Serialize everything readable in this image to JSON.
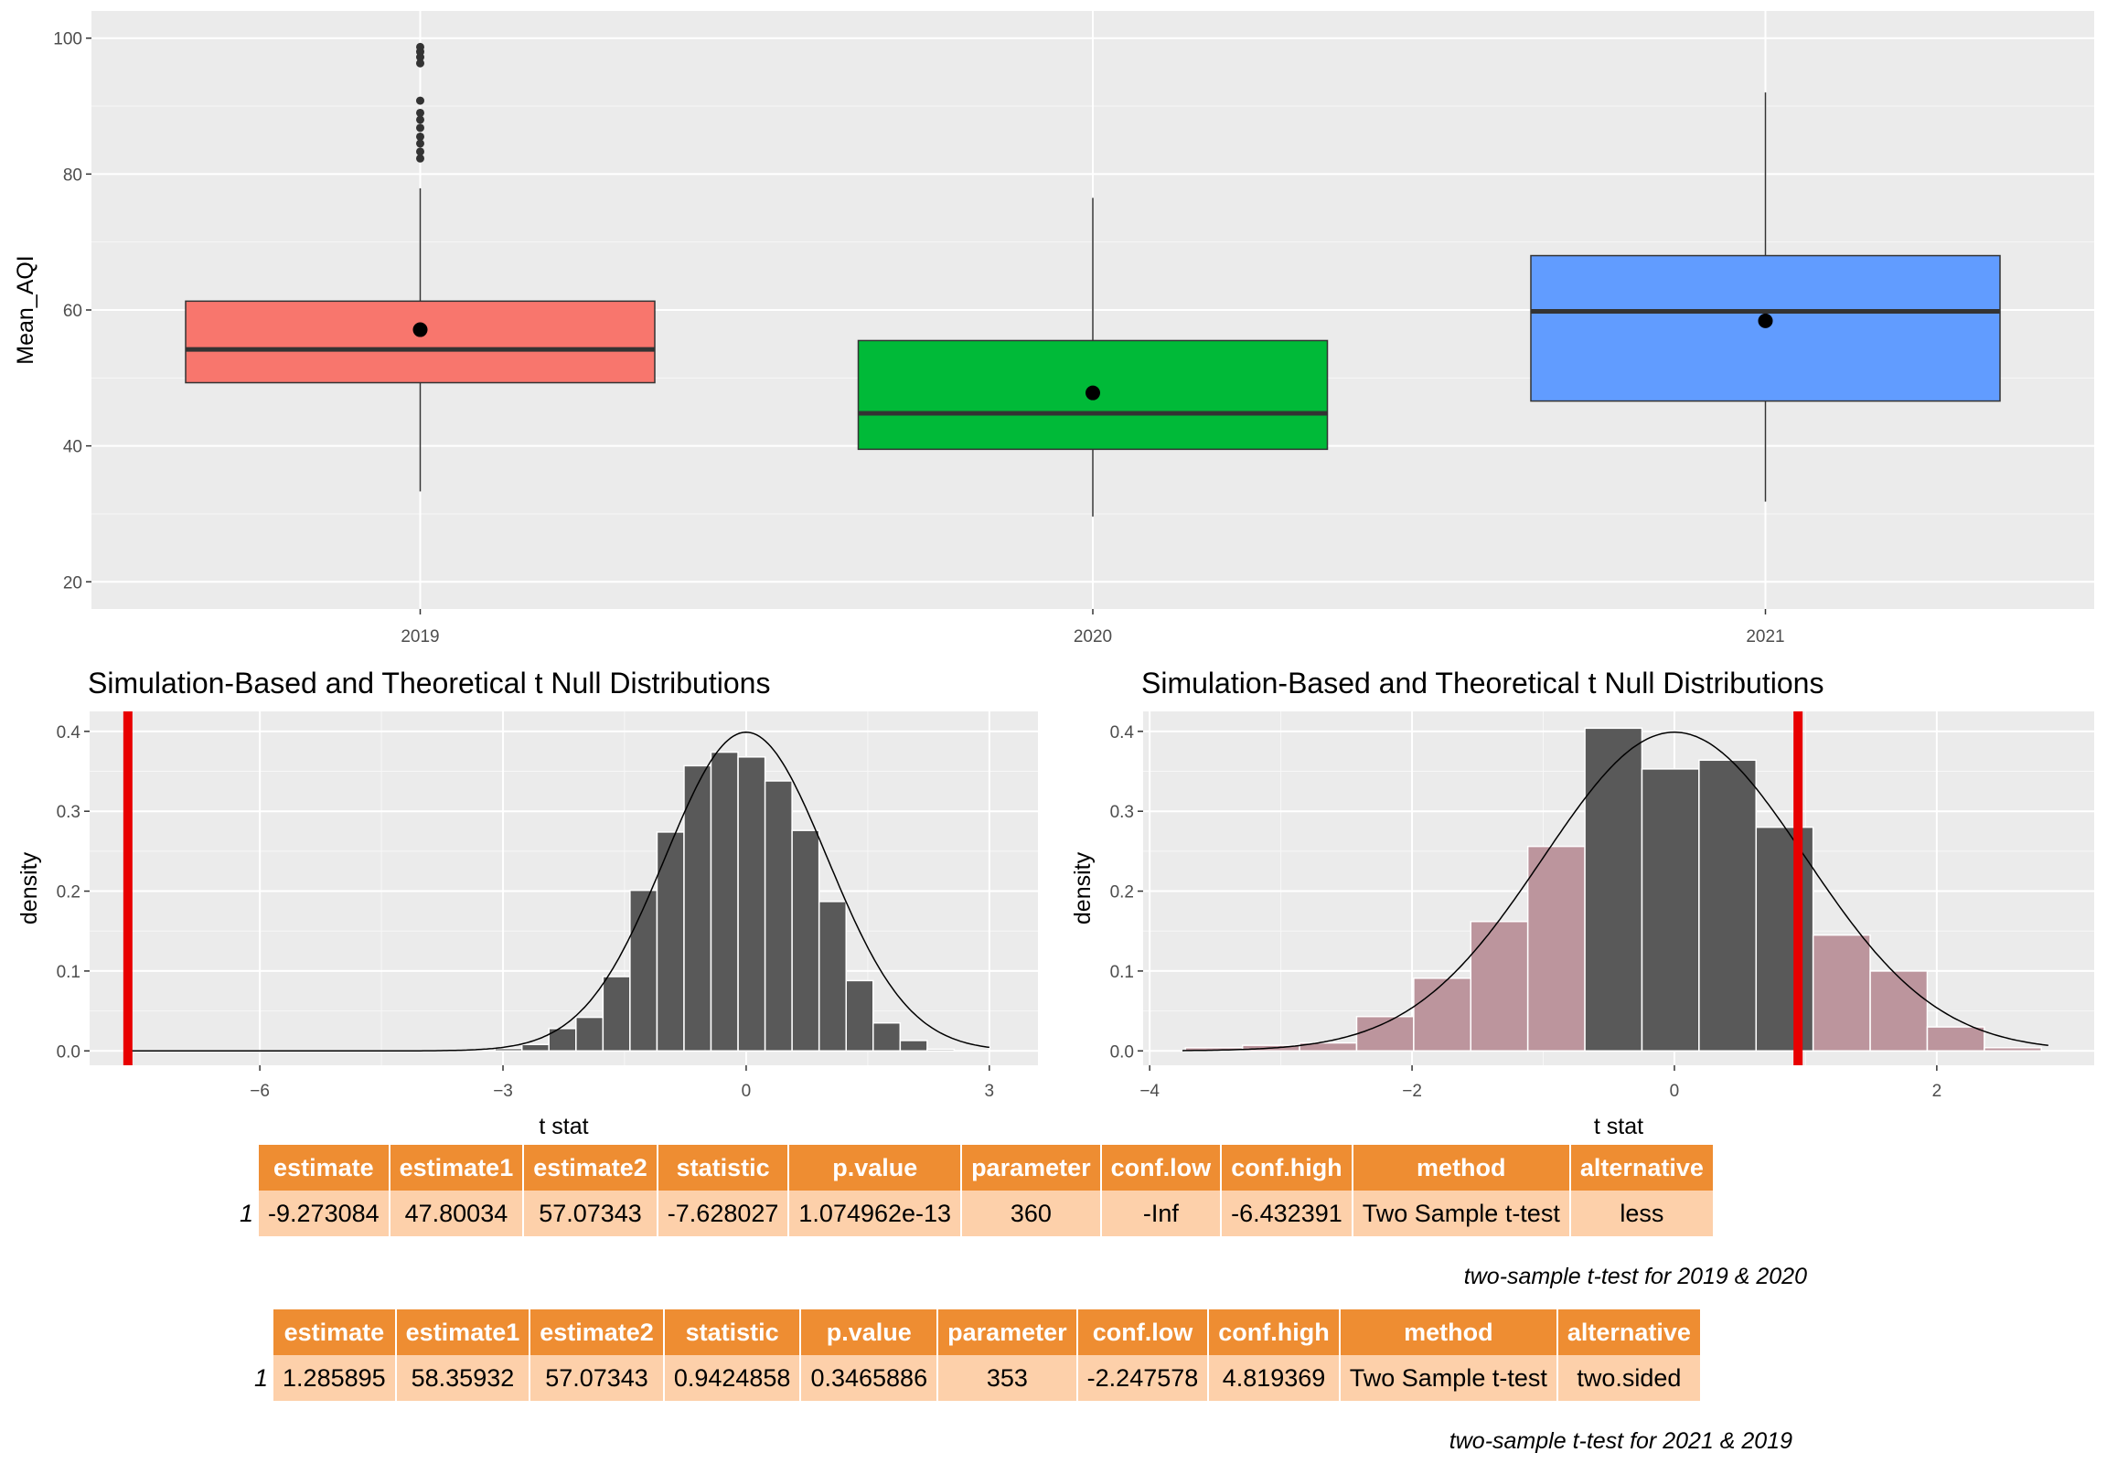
{
  "chart_data": [
    {
      "type": "box",
      "ylabel": "Mean_AQI",
      "xlabel": "",
      "ylim": [
        16,
        104
      ],
      "yticks": [
        20,
        40,
        60,
        80,
        100
      ],
      "categories": [
        "2019",
        "2020",
        "2021"
      ],
      "series": [
        {
          "name": "2019",
          "color": "#f8766d",
          "q1": 49.3,
          "median": 54.2,
          "q3": 61.3,
          "whisker_low": 33.3,
          "whisker_high": 77.9,
          "mean": 57.1,
          "outliers": [
            82.3,
            83.3,
            84.5,
            85.5,
            86.8,
            88.0,
            89.0,
            90.8,
            96.3,
            97.2,
            98.0,
            98.7
          ]
        },
        {
          "name": "2020",
          "color": "#00ba38",
          "q1": 39.5,
          "median": 44.8,
          "q3": 55.5,
          "whisker_low": 29.6,
          "whisker_high": 76.5,
          "mean": 47.8,
          "outliers": []
        },
        {
          "name": "2021",
          "color": "#619cff",
          "q1": 46.6,
          "median": 59.8,
          "q3": 68.0,
          "whisker_low": 31.8,
          "whisker_high": 92.0,
          "mean": 58.4,
          "outliers": []
        }
      ]
    },
    {
      "type": "histogram",
      "title": "Simulation-Based and Theoretical t Null Distributions",
      "xlabel": "t stat",
      "ylabel": "density",
      "xlim": [
        -8.1,
        3.6
      ],
      "ylim": [
        -0.018,
        0.425
      ],
      "xticks": [
        -6,
        -3,
        0,
        3
      ],
      "yticks": [
        0.0,
        0.1,
        0.2,
        0.3,
        0.4
      ],
      "bin_width": 0.333,
      "bins": [
        {
          "x": -2.933,
          "density": 0.003,
          "shaded": false
        },
        {
          "x": -2.6,
          "density": 0.008,
          "shaded": false
        },
        {
          "x": -2.267,
          "density": 0.028,
          "shaded": false
        },
        {
          "x": -1.933,
          "density": 0.042,
          "shaded": false
        },
        {
          "x": -1.6,
          "density": 0.093,
          "shaded": false
        },
        {
          "x": -1.267,
          "density": 0.201,
          "shaded": false
        },
        {
          "x": -0.933,
          "density": 0.274,
          "shaded": false
        },
        {
          "x": -0.6,
          "density": 0.357,
          "shaded": false
        },
        {
          "x": -0.267,
          "density": 0.374,
          "shaded": false
        },
        {
          "x": 0.067,
          "density": 0.368,
          "shaded": false
        },
        {
          "x": 0.4,
          "density": 0.338,
          "shaded": false
        },
        {
          "x": 0.733,
          "density": 0.276,
          "shaded": false
        },
        {
          "x": 1.067,
          "density": 0.187,
          "shaded": false
        },
        {
          "x": 1.4,
          "density": 0.088,
          "shaded": false
        },
        {
          "x": 1.733,
          "density": 0.035,
          "shaded": false
        },
        {
          "x": 2.067,
          "density": 0.013,
          "shaded": false
        },
        {
          "x": 2.4,
          "density": 0.002,
          "shaded": false
        }
      ],
      "observed_stat": -7.628027,
      "curve_range": [
        -7.628,
        3.0
      ]
    },
    {
      "type": "histogram",
      "title": "Simulation-Based and Theoretical t Null Distributions",
      "xlabel": "t stat",
      "ylabel": "density",
      "xlim": [
        -4.05,
        3.2
      ],
      "ylim": [
        -0.018,
        0.425
      ],
      "xticks": [
        -4,
        -2,
        0,
        2
      ],
      "yticks": [
        0.0,
        0.1,
        0.2,
        0.3,
        0.4
      ],
      "bin_width": 0.4347,
      "bins": [
        {
          "x": -3.51,
          "density": 0.004,
          "shaded": true
        },
        {
          "x": -3.075,
          "density": 0.007,
          "shaded": true
        },
        {
          "x": -2.64,
          "density": 0.01,
          "shaded": true
        },
        {
          "x": -2.205,
          "density": 0.043,
          "shaded": true
        },
        {
          "x": -1.77,
          "density": 0.091,
          "shaded": true
        },
        {
          "x": -1.335,
          "density": 0.162,
          "shaded": true
        },
        {
          "x": -0.9,
          "density": 0.256,
          "shaded": true
        },
        {
          "x": -0.465,
          "density": 0.404,
          "shaded": false
        },
        {
          "x": -0.03,
          "density": 0.353,
          "shaded": false
        },
        {
          "x": 0.405,
          "density": 0.364,
          "shaded": false
        },
        {
          "x": 0.84,
          "density": 0.28,
          "shaded": false
        },
        {
          "x": 1.275,
          "density": 0.145,
          "shaded": true
        },
        {
          "x": 1.71,
          "density": 0.1,
          "shaded": true
        },
        {
          "x": 2.145,
          "density": 0.03,
          "shaded": true
        },
        {
          "x": 2.58,
          "density": 0.004,
          "shaded": true
        }
      ],
      "observed_stat": 0.9424858,
      "curve_range": [
        -3.75,
        2.85
      ]
    }
  ],
  "tables": [
    {
      "columns": [
        "estimate",
        "estimate1",
        "estimate2",
        "statistic",
        "p.value",
        "parameter",
        "conf.low",
        "conf.high",
        "method",
        "alternative"
      ],
      "row_name": "1",
      "row": [
        "-9.273084",
        "47.80034",
        "57.07343",
        "-7.628027",
        "1.074962e-13",
        "360",
        "-Inf",
        "-6.432391",
        "Two Sample t-test",
        "less"
      ],
      "caption": "two-sample t-test for 2019 & 2020"
    },
    {
      "columns": [
        "estimate",
        "estimate1",
        "estimate2",
        "statistic",
        "p.value",
        "parameter",
        "conf.low",
        "conf.high",
        "method",
        "alternative"
      ],
      "row_name": "1",
      "row": [
        "1.285895",
        "58.35932",
        "57.07343",
        "0.9424858",
        "0.3465886",
        "353",
        "-2.247578",
        "4.819369",
        "Two Sample t-test",
        "two.sided"
      ],
      "caption": "two-sample t-test for 2021 & 2019"
    }
  ],
  "colors": {
    "panel": "#ebebeb",
    "grid_major": "#ffffff",
    "bar": "#595959",
    "bar_shaded": "#bc959d",
    "observed_line": "#e80000",
    "table_header": "#ee8d32",
    "table_cell": "#fdd0aa"
  }
}
